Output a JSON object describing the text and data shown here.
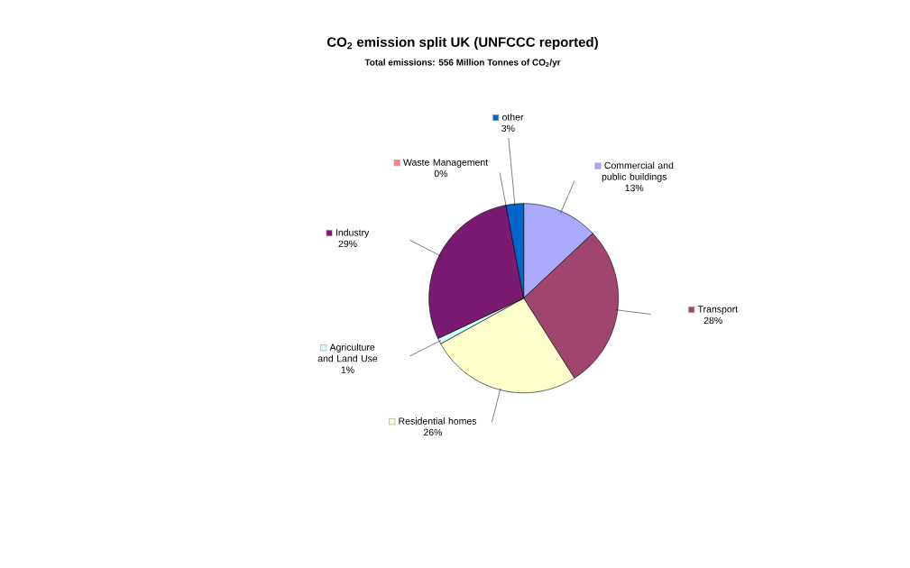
{
  "chart_data": {
    "type": "pie",
    "title": "CO$_{2}$ emission split UK (UNFCCC reported)",
    "subtitle": "Total emissions: 556 Million Tonnes of CO$_{2}$/yr",
    "categories": [
      "Commercial and public buildings",
      "Transport",
      "Residential homes",
      "Agriculture and Land Use",
      "Industry",
      "Waste Management",
      "other"
    ],
    "values": [
      13,
      28,
      26,
      1,
      29,
      0,
      3
    ],
    "value_labels": [
      "13%",
      "28%",
      "26%",
      "1%",
      "29%",
      "0%",
      "3%"
    ],
    "colors": [
      "#aaaaff",
      "#a0466e",
      "#ffffcc",
      "#ccffff",
      "#7a1a70",
      "#ff8080",
      "#0066cc"
    ],
    "legend": "right"
  }
}
